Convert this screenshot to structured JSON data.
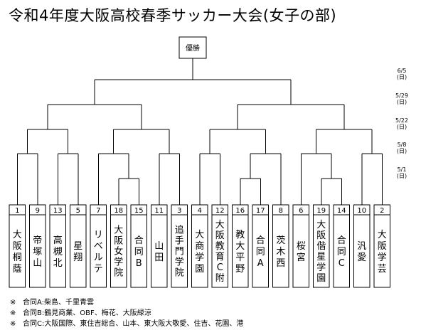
{
  "title": "令和4年度大阪高校春季サッカー大会(女子の部)",
  "champion_label": "優勝",
  "teams": [
    {
      "seed": "1",
      "name": "大阪桐蔭"
    },
    {
      "seed": "9",
      "name": "帝塚山"
    },
    {
      "seed": "13",
      "name": "高槻北"
    },
    {
      "seed": "5",
      "name": "星翔"
    },
    {
      "seed": "7",
      "name": "リベルテ"
    },
    {
      "seed": "18",
      "name": "大阪女学院"
    },
    {
      "seed": "15",
      "name": "合同B"
    },
    {
      "seed": "11",
      "name": "山田"
    },
    {
      "seed": "3",
      "name": "追手門学院"
    },
    {
      "seed": "4",
      "name": "大商学園"
    },
    {
      "seed": "12",
      "name": "大阪教育C附"
    },
    {
      "seed": "16",
      "name": "教大平野"
    },
    {
      "seed": "17",
      "name": "合同A"
    },
    {
      "seed": "8",
      "name": "茨木西"
    },
    {
      "seed": "6",
      "name": "桜宮"
    },
    {
      "seed": "19",
      "name": "大阪偕星学園"
    },
    {
      "seed": "14",
      "name": "合同C"
    },
    {
      "seed": "10",
      "name": "汎愛"
    },
    {
      "seed": "2",
      "name": "大阪学芸"
    }
  ],
  "round_dates": [
    {
      "date": "6/5",
      "day": "(日)"
    },
    {
      "date": "5/29",
      "day": "(日)"
    },
    {
      "date": "5/22",
      "day": "(日)"
    },
    {
      "date": "5/8",
      "day": "(日)"
    },
    {
      "date": "5/1",
      "day": "(日)"
    }
  ],
  "notes": [
    {
      "mark": "※",
      "text": "合同A:柴島、千里青雲"
    },
    {
      "mark": "※",
      "text": "合同B:鶴見商業、OBF、梅花、大阪緑涼"
    },
    {
      "mark": "※",
      "text": "合同C:大阪国際、東住吉総合、山本、東大阪大敬愛、住吉、花園、港"
    }
  ]
}
